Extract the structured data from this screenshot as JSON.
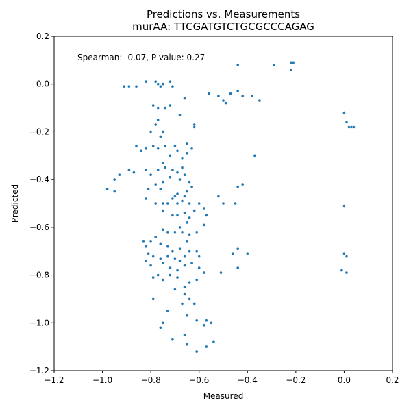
{
  "chart_data": {
    "type": "scatter",
    "title": "Predictions vs. Measurements",
    "subtitle": "murAA: TTCGATGTCTGCGCCCAGAG",
    "xlabel": "Measured",
    "ylabel": "Predicted",
    "annotation": "Spearman: -0.07, P-value: 0.27",
    "xlim": [
      -1.2,
      0.2
    ],
    "ylim": [
      -1.2,
      0.2
    ],
    "xticks": [
      "−1.2",
      "−1.0",
      "−0.8",
      "−0.6",
      "−0.4",
      "−0.2",
      "0.0",
      "0.2"
    ],
    "yticks": [
      "−1.2",
      "−1.0",
      "−0.8",
      "−0.6",
      "−0.4",
      "−0.2",
      "0.0",
      "0.2"
    ],
    "grid": false,
    "point_color": "#1f77b4",
    "points": [
      [
        -0.44,
        0.08
      ],
      [
        -0.29,
        0.08
      ],
      [
        -0.22,
        0.09
      ],
      [
        -0.21,
        0.09
      ],
      [
        -0.22,
        0.06
      ],
      [
        -0.91,
        -0.01
      ],
      [
        -0.89,
        -0.01
      ],
      [
        -0.86,
        -0.01
      ],
      [
        -0.82,
        0.01
      ],
      [
        -0.78,
        0.01
      ],
      [
        -0.77,
        0.0
      ],
      [
        -0.76,
        -0.01
      ],
      [
        -0.75,
        0.0
      ],
      [
        -0.72,
        0.01
      ],
      [
        -0.71,
        -0.01
      ],
      [
        -0.56,
        -0.04
      ],
      [
        -0.52,
        -0.05
      ],
      [
        -0.5,
        -0.07
      ],
      [
        -0.49,
        -0.08
      ],
      [
        -0.47,
        -0.04
      ],
      [
        -0.44,
        -0.03
      ],
      [
        -0.42,
        -0.05
      ],
      [
        -0.38,
        -0.05
      ],
      [
        -0.35,
        -0.07
      ],
      [
        0.0,
        -0.12
      ],
      [
        0.01,
        -0.16
      ],
      [
        0.02,
        -0.18
      ],
      [
        0.03,
        -0.18
      ],
      [
        0.04,
        -0.18
      ],
      [
        -0.66,
        -0.06
      ],
      [
        -0.79,
        -0.09
      ],
      [
        -0.77,
        -0.1
      ],
      [
        -0.74,
        -0.1
      ],
      [
        -0.72,
        -0.09
      ],
      [
        -0.68,
        -0.13
      ],
      [
        -0.62,
        -0.17
      ],
      [
        -0.62,
        -0.18
      ],
      [
        -0.77,
        -0.15
      ],
      [
        -0.78,
        -0.17
      ],
      [
        -0.8,
        -0.2
      ],
      [
        -0.75,
        -0.2
      ],
      [
        -0.76,
        -0.22
      ],
      [
        -0.86,
        -0.26
      ],
      [
        -0.84,
        -0.28
      ],
      [
        -0.82,
        -0.27
      ],
      [
        -0.79,
        -0.26
      ],
      [
        -0.77,
        -0.27
      ],
      [
        -0.74,
        -0.26
      ],
      [
        -0.7,
        -0.26
      ],
      [
        -0.69,
        -0.28
      ],
      [
        -0.65,
        -0.25
      ],
      [
        -0.63,
        -0.27
      ],
      [
        -0.67,
        -0.31
      ],
      [
        -0.72,
        -0.3
      ],
      [
        -0.75,
        -0.33
      ],
      [
        -0.65,
        -0.29
      ],
      [
        -0.37,
        -0.3
      ],
      [
        -0.89,
        -0.36
      ],
      [
        -0.87,
        -0.37
      ],
      [
        -0.93,
        -0.38
      ],
      [
        -0.95,
        -0.4
      ],
      [
        -0.98,
        -0.44
      ],
      [
        -0.95,
        -0.45
      ],
      [
        -0.82,
        -0.36
      ],
      [
        -0.8,
        -0.38
      ],
      [
        -0.77,
        -0.36
      ],
      [
        -0.74,
        -0.35
      ],
      [
        -0.71,
        -0.36
      ],
      [
        -0.69,
        -0.37
      ],
      [
        -0.67,
        -0.35
      ],
      [
        -0.66,
        -0.38
      ],
      [
        -0.68,
        -0.4
      ],
      [
        -0.72,
        -0.39
      ],
      [
        -0.75,
        -0.41
      ],
      [
        -0.78,
        -0.42
      ],
      [
        -0.76,
        -0.44
      ],
      [
        -0.81,
        -0.44
      ],
      [
        -0.64,
        -0.41
      ],
      [
        -0.63,
        -0.43
      ],
      [
        -0.65,
        -0.45
      ],
      [
        -0.66,
        -0.47
      ],
      [
        -0.69,
        -0.46
      ],
      [
        -0.7,
        -0.47
      ],
      [
        -0.71,
        -0.48
      ],
      [
        -0.73,
        -0.5
      ],
      [
        -0.75,
        -0.5
      ],
      [
        -0.78,
        -0.5
      ],
      [
        -0.82,
        -0.48
      ],
      [
        -0.69,
        -0.5
      ],
      [
        -0.67,
        -0.49
      ],
      [
        -0.64,
        -0.5
      ],
      [
        -0.6,
        -0.5
      ],
      [
        -0.58,
        -0.52
      ],
      [
        -0.62,
        -0.53
      ],
      [
        -0.66,
        -0.54
      ],
      [
        -0.69,
        -0.55
      ],
      [
        -0.71,
        -0.55
      ],
      [
        -0.75,
        -0.53
      ],
      [
        -0.64,
        -0.56
      ],
      [
        -0.65,
        -0.58
      ],
      [
        -0.58,
        -0.59
      ],
      [
        -0.57,
        -0.55
      ],
      [
        -0.5,
        -0.5
      ],
      [
        -0.52,
        -0.47
      ],
      [
        -0.45,
        -0.5
      ],
      [
        -0.44,
        -0.43
      ],
      [
        -0.42,
        -0.42
      ],
      [
        0.0,
        -0.51
      ],
      [
        -0.75,
        -0.61
      ],
      [
        -0.73,
        -0.62
      ],
      [
        -0.7,
        -0.62
      ],
      [
        -0.68,
        -0.6
      ],
      [
        -0.67,
        -0.62
      ],
      [
        -0.64,
        -0.63
      ],
      [
        -0.61,
        -0.62
      ],
      [
        -0.78,
        -0.64
      ],
      [
        -0.8,
        -0.66
      ],
      [
        -0.83,
        -0.66
      ],
      [
        -0.82,
        -0.68
      ],
      [
        -0.76,
        -0.67
      ],
      [
        -0.73,
        -0.68
      ],
      [
        -0.71,
        -0.7
      ],
      [
        -0.68,
        -0.69
      ],
      [
        -0.65,
        -0.66
      ],
      [
        -0.64,
        -0.7
      ],
      [
        -0.61,
        -0.7
      ],
      [
        -0.66,
        -0.72
      ],
      [
        -0.68,
        -0.74
      ],
      [
        -0.7,
        -0.73
      ],
      [
        -0.73,
        -0.72
      ],
      [
        -0.76,
        -0.73
      ],
      [
        -0.79,
        -0.72
      ],
      [
        -0.81,
        -0.71
      ],
      [
        -0.82,
        -0.74
      ],
      [
        -0.8,
        -0.76
      ],
      [
        -0.75,
        -0.75
      ],
      [
        -0.72,
        -0.77
      ],
      [
        -0.69,
        -0.78
      ],
      [
        -0.66,
        -0.76
      ],
      [
        -0.63,
        -0.75
      ],
      [
        -0.6,
        -0.72
      ],
      [
        -0.6,
        -0.77
      ],
      [
        -0.58,
        -0.79
      ],
      [
        -0.61,
        -0.82
      ],
      [
        -0.64,
        -0.83
      ],
      [
        -0.66,
        -0.85
      ],
      [
        -0.69,
        -0.81
      ],
      [
        -0.72,
        -0.8
      ],
      [
        -0.75,
        -0.82
      ],
      [
        -0.77,
        -0.8
      ],
      [
        -0.79,
        -0.81
      ],
      [
        -0.7,
        -0.86
      ],
      [
        -0.66,
        -0.88
      ],
      [
        -0.62,
        -0.92
      ],
      [
        -0.64,
        -0.9
      ],
      [
        -0.67,
        -0.92
      ],
      [
        -0.79,
        -0.9
      ],
      [
        -0.44,
        -0.69
      ],
      [
        -0.46,
        -0.71
      ],
      [
        -0.4,
        -0.71
      ],
      [
        -0.44,
        -0.77
      ],
      [
        -0.51,
        -0.79
      ],
      [
        0.0,
        -0.71
      ],
      [
        0.01,
        -0.72
      ],
      [
        -0.01,
        -0.78
      ],
      [
        0.01,
        -0.79
      ],
      [
        -0.73,
        -0.95
      ],
      [
        -0.75,
        -1.0
      ],
      [
        -0.76,
        -1.02
      ],
      [
        -0.65,
        -0.97
      ],
      [
        -0.61,
        -0.99
      ],
      [
        -0.57,
        -0.99
      ],
      [
        -0.58,
        -1.01
      ],
      [
        -0.55,
        -1.0
      ],
      [
        -0.66,
        -1.05
      ],
      [
        -0.71,
        -1.07
      ],
      [
        -0.65,
        -1.09
      ],
      [
        -0.61,
        -1.12
      ],
      [
        -0.57,
        -1.1
      ],
      [
        -0.54,
        -1.08
      ]
    ]
  }
}
